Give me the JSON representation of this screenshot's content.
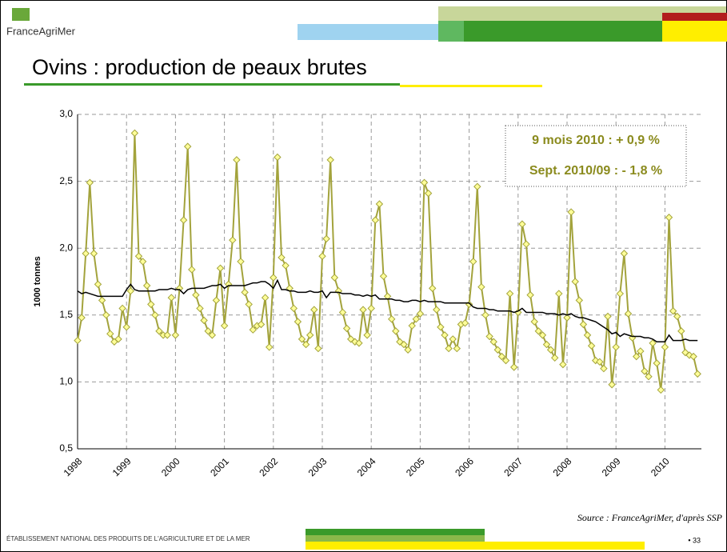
{
  "header": {
    "logo": "FranceAgriMer",
    "title": "Ovins : production de peaux brutes"
  },
  "chart_data": {
    "type": "line",
    "ylabel": "1000 tonnes",
    "categories": [
      "1998",
      null,
      null,
      null,
      null,
      null,
      null,
      null,
      null,
      null,
      null,
      null,
      "1999",
      null,
      null,
      null,
      null,
      null,
      null,
      null,
      null,
      null,
      null,
      null,
      "2000",
      null,
      null,
      null,
      null,
      null,
      null,
      null,
      null,
      null,
      null,
      null,
      "2001",
      null,
      null,
      null,
      null,
      null,
      null,
      null,
      null,
      null,
      null,
      null,
      "2002",
      null,
      null,
      null,
      null,
      null,
      null,
      null,
      null,
      null,
      null,
      null,
      "2003",
      null,
      null,
      null,
      null,
      null,
      null,
      null,
      null,
      null,
      null,
      null,
      "2004",
      null,
      null,
      null,
      null,
      null,
      null,
      null,
      null,
      null,
      null,
      null,
      "2005",
      null,
      null,
      null,
      null,
      null,
      null,
      null,
      null,
      null,
      null,
      null,
      "2006",
      null,
      null,
      null,
      null,
      null,
      null,
      null,
      null,
      null,
      null,
      null,
      "2007",
      null,
      null,
      null,
      null,
      null,
      null,
      null,
      null,
      null,
      null,
      null,
      "2008",
      null,
      null,
      null,
      null,
      null,
      null,
      null,
      null,
      null,
      null,
      null,
      "2009",
      null,
      null,
      null,
      null,
      null,
      null,
      null,
      null,
      null,
      null,
      null,
      "2010",
      null,
      null,
      null,
      null,
      null,
      null,
      null,
      null
    ],
    "series": [
      {
        "color": "#a3a33c",
        "marker_color": "#ffff99",
        "values": [
          1.31,
          1.48,
          1.96,
          2.49,
          1.96,
          1.73,
          1.61,
          1.5,
          1.36,
          1.3,
          1.32,
          1.55,
          1.41,
          1.68,
          2.86,
          1.94,
          1.9,
          1.72,
          1.58,
          1.5,
          1.38,
          1.35,
          1.35,
          1.63,
          1.35,
          1.7,
          2.21,
          2.76,
          1.84,
          1.65,
          1.55,
          1.46,
          1.38,
          1.35,
          1.61,
          1.85,
          1.42,
          1.73,
          2.06,
          2.66,
          1.9,
          1.67,
          1.58,
          1.39,
          1.42,
          1.43,
          1.63,
          1.26,
          1.78,
          2.68,
          1.93,
          1.87,
          1.7,
          1.55,
          1.45,
          1.32,
          1.28,
          1.35,
          1.54,
          1.25,
          1.94,
          2.07,
          2.66,
          1.78,
          1.68,
          1.52,
          1.4,
          1.32,
          1.3,
          1.29,
          1.54,
          1.35,
          1.55,
          2.21,
          2.33,
          1.79,
          1.64,
          1.47,
          1.38,
          1.3,
          1.28,
          1.24,
          1.42,
          1.47,
          1.51,
          2.49,
          2.41,
          1.7,
          1.54,
          1.41,
          1.35,
          1.25,
          1.32,
          1.25,
          1.43,
          1.44,
          1.58,
          1.9,
          2.46,
          1.71,
          1.5,
          1.34,
          1.3,
          1.24,
          1.19,
          1.16,
          1.66,
          1.11,
          1.52,
          2.18,
          2.03,
          1.65,
          1.45,
          1.38,
          1.35,
          1.28,
          1.24,
          1.18,
          1.66,
          1.13,
          1.48,
          2.27,
          1.75,
          1.61,
          1.43,
          1.35,
          1.27,
          1.16,
          1.15,
          1.1,
          1.49,
          0.98,
          1.26,
          1.66,
          1.96,
          1.51,
          1.33,
          1.19,
          1.23,
          1.08,
          1.04,
          1.29,
          1.14,
          0.94,
          1.26,
          2.23,
          1.53,
          1.49,
          1.38,
          1.22,
          1.2,
          1.19,
          1.06
        ]
      },
      {
        "color": "#000000",
        "values": [
          1.68,
          1.66,
          1.67,
          1.66,
          1.65,
          1.64,
          1.64,
          1.64,
          1.64,
          1.64,
          1.64,
          1.64,
          1.69,
          1.73,
          1.69,
          1.68,
          1.68,
          1.68,
          1.68,
          1.68,
          1.69,
          1.69,
          1.69,
          1.7,
          1.69,
          1.69,
          1.66,
          1.69,
          1.7,
          1.7,
          1.7,
          1.7,
          1.71,
          1.72,
          1.72,
          1.73,
          1.7,
          1.72,
          1.72,
          1.72,
          1.72,
          1.72,
          1.73,
          1.74,
          1.74,
          1.75,
          1.75,
          1.73,
          1.7,
          1.76,
          1.69,
          1.69,
          1.68,
          1.68,
          1.67,
          1.67,
          1.67,
          1.68,
          1.67,
          1.67,
          1.68,
          1.63,
          1.67,
          1.67,
          1.67,
          1.66,
          1.66,
          1.66,
          1.65,
          1.65,
          1.64,
          1.65,
          1.64,
          1.65,
          1.62,
          1.62,
          1.62,
          1.62,
          1.61,
          1.61,
          1.6,
          1.6,
          1.61,
          1.61,
          1.6,
          1.61,
          1.6,
          1.6,
          1.6,
          1.6,
          1.59,
          1.59,
          1.59,
          1.59,
          1.59,
          1.59,
          1.59,
          1.56,
          1.55,
          1.55,
          1.55,
          1.54,
          1.54,
          1.53,
          1.53,
          1.53,
          1.53,
          1.52,
          1.53,
          1.55,
          1.52,
          1.52,
          1.52,
          1.52,
          1.52,
          1.51,
          1.51,
          1.51,
          1.5,
          1.51,
          1.5,
          1.51,
          1.49,
          1.48,
          1.48,
          1.47,
          1.46,
          1.45,
          1.43,
          1.41,
          1.39,
          1.36,
          1.37,
          1.34,
          1.36,
          1.35,
          1.34,
          1.34,
          1.34,
          1.33,
          1.33,
          1.32,
          1.3,
          1.3,
          1.3,
          1.35,
          1.31,
          1.31,
          1.31,
          1.32,
          1.31,
          1.31,
          1.31
        ]
      }
    ],
    "ylim": [
      0.5,
      3.0
    ],
    "yticks": [
      {
        "value": 0.5,
        "label": "0,5"
      },
      {
        "value": 1.0,
        "label": "1,0"
      },
      {
        "value": 1.5,
        "label": "1,5"
      },
      {
        "value": 2.0,
        "label": "2,0"
      },
      {
        "value": 2.5,
        "label": "2,5"
      },
      {
        "value": 3.0,
        "label": "3,0"
      }
    ],
    "grid": true,
    "annotations": [
      "9 mois 2010 : + 0,9 %",
      "Sept. 2010/09 : - 1,8 %"
    ]
  },
  "source": "Source : FranceAgriMer, d'après SSP",
  "footer": {
    "organization": "ÉTABLISSEMENT NATIONAL DES PRODUITS DE L'AGRICULTURE ET DE LA MER",
    "page": "• 33"
  }
}
